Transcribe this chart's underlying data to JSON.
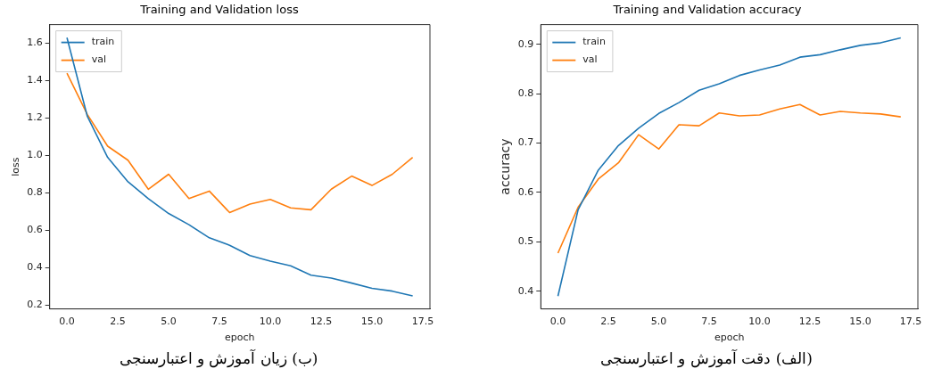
{
  "chart_data": [
    {
      "type": "line",
      "title": "Training and Validation loss",
      "xlabel": "epoch",
      "ylabel": "loss",
      "x": [
        0,
        1,
        2,
        3,
        4,
        5,
        6,
        7,
        8,
        9,
        10,
        11,
        12,
        13,
        14,
        15,
        16,
        17
      ],
      "series": [
        {
          "name": "train",
          "color": "#1f77b4",
          "values": [
            1.63,
            1.21,
            0.99,
            0.86,
            0.77,
            0.69,
            0.63,
            0.56,
            0.52,
            0.465,
            0.435,
            0.41,
            0.36,
            0.345,
            0.318,
            0.29,
            0.275,
            0.25
          ]
        },
        {
          "name": "val",
          "color": "#ff7f0e",
          "values": [
            1.44,
            1.22,
            1.05,
            0.975,
            0.82,
            0.9,
            0.77,
            0.81,
            0.695,
            0.74,
            0.765,
            0.72,
            0.71,
            0.82,
            0.89,
            0.84,
            0.9,
            0.99
          ]
        }
      ],
      "xlim": [
        -0.85,
        17.85
      ],
      "ylim": [
        0.18,
        1.7
      ],
      "xticks": [
        {
          "value": 0,
          "label": "0.0"
        },
        {
          "value": 2.5,
          "label": "2.5"
        },
        {
          "value": 5,
          "label": "5.0"
        },
        {
          "value": 7.5,
          "label": "7.5"
        },
        {
          "value": 10,
          "label": "10.0"
        },
        {
          "value": 12.5,
          "label": "12.5"
        },
        {
          "value": 15,
          "label": "15.0"
        },
        {
          "value": 17.5,
          "label": "17.5"
        }
      ],
      "yticks": [
        0.2,
        0.4,
        0.6,
        0.8,
        {
          "value": 1,
          "label": "1.0"
        },
        1.2,
        1.4,
        1.6
      ],
      "legend": "top left",
      "grid": false,
      "marker": "none",
      "line_style": "solid",
      "annotations": [
        "(ب) زیان آموزش و اعتبارسنجی"
      ]
    },
    {
      "type": "line",
      "title": "Training and Validation accuracy",
      "xlabel": "epoch",
      "ylabel": "accuracy",
      "x": [
        0,
        1,
        2,
        3,
        4,
        5,
        6,
        7,
        8,
        9,
        10,
        11,
        12,
        13,
        14,
        15,
        16,
        17
      ],
      "series": [
        {
          "name": "train",
          "color": "#1f77b4",
          "values": [
            0.39,
            0.565,
            0.645,
            0.695,
            0.73,
            0.76,
            0.782,
            0.807,
            0.82,
            0.837,
            0.848,
            0.858,
            0.874,
            0.879,
            0.889,
            0.898,
            0.903,
            0.913
          ]
        },
        {
          "name": "val",
          "color": "#ff7f0e",
          "values": [
            0.477,
            0.57,
            0.627,
            0.66,
            0.717,
            0.688,
            0.737,
            0.735,
            0.761,
            0.755,
            0.757,
            0.769,
            0.778,
            0.757,
            0.764,
            0.761,
            0.759,
            0.753
          ]
        }
      ],
      "xlim": [
        -0.85,
        17.85
      ],
      "ylim": [
        0.364,
        0.94
      ],
      "xticks": [
        {
          "value": 0,
          "label": "0.0"
        },
        {
          "value": 2.5,
          "label": "2.5"
        },
        {
          "value": 5,
          "label": "5.0"
        },
        {
          "value": 7.5,
          "label": "7.5"
        },
        {
          "value": 10,
          "label": "10.0"
        },
        {
          "value": 12.5,
          "label": "12.5"
        },
        {
          "value": 15,
          "label": "15.0"
        },
        {
          "value": 17.5,
          "label": "17.5"
        }
      ],
      "yticks": [
        0.4,
        0.5,
        0.6,
        0.7,
        0.8,
        0.9
      ],
      "legend": "top left",
      "grid": false,
      "marker": "none",
      "line_style": "solid",
      "annotations": [
        "(الف) دقت آموزش و اعتبارسنجی"
      ]
    }
  ]
}
